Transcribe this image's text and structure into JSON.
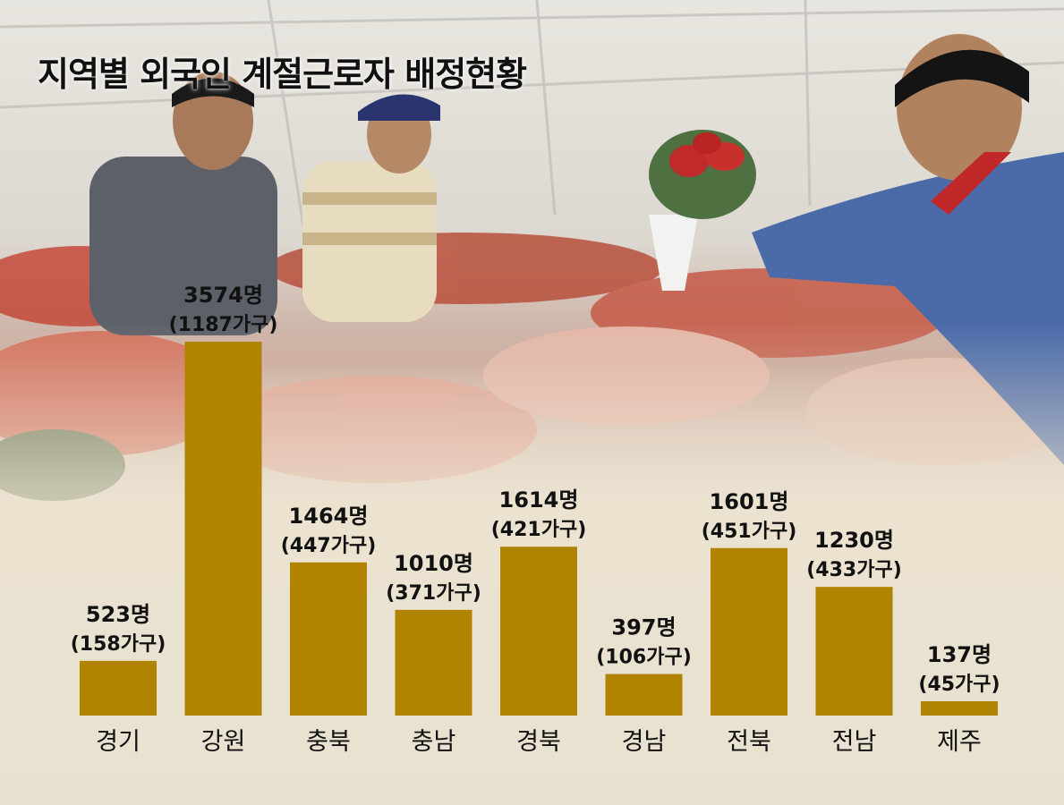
{
  "title": "지역별 외국인 계절근로자 배정현황",
  "colors": {
    "bar": "#b08400",
    "text": "#111111",
    "background": "#e9e1cf"
  },
  "chart_data": {
    "type": "bar",
    "title": "지역별 외국인 계절근로자 배정현황",
    "categories": [
      "경기",
      "강원",
      "충북",
      "충남",
      "경북",
      "경남",
      "전북",
      "전남",
      "제주"
    ],
    "values": [
      523,
      3574,
      1464,
      1010,
      1614,
      397,
      1601,
      1230,
      137
    ],
    "households": [
      158,
      1187,
      447,
      371,
      421,
      106,
      451,
      433,
      45
    ],
    "value_labels": [
      "523명",
      "3574명",
      "1464명",
      "1010명",
      "1614명",
      "397명",
      "1601명",
      "1230명",
      "137명"
    ],
    "household_labels": [
      "(158가구)",
      "(1187가구)",
      "(447가구)",
      "(371가구)",
      "(421가구)",
      "(106가구)",
      "(451가구)",
      "(433가구)",
      "(45가구)"
    ],
    "ylim": [
      0,
      3574
    ],
    "grid": false,
    "legend": "none"
  }
}
